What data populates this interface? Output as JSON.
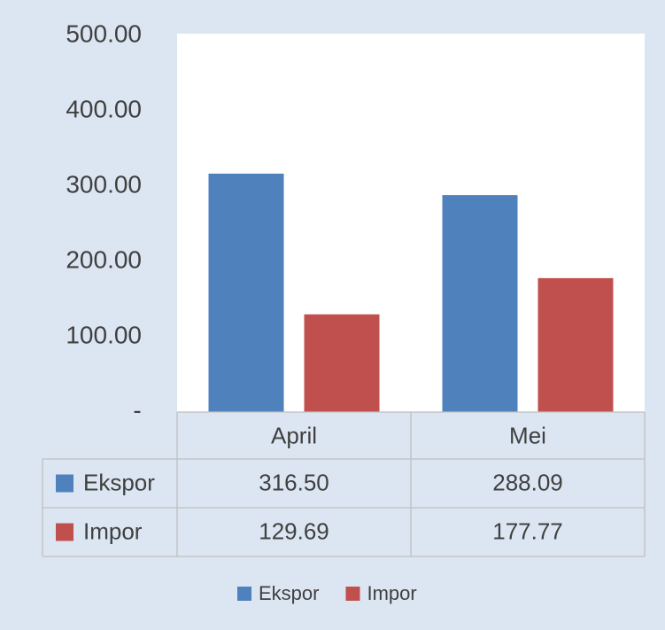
{
  "chart_data": {
    "type": "bar",
    "categories": [
      "April",
      "Mei"
    ],
    "series": [
      {
        "name": "Ekspor",
        "color": "#4f81bd",
        "values": [
          316.5,
          288.09
        ],
        "value_labels": [
          "316.50",
          "288.09"
        ]
      },
      {
        "name": "Impor",
        "color": "#c0504d",
        "values": [
          129.69,
          177.77
        ],
        "value_labels": [
          "129.69",
          "177.77"
        ]
      }
    ],
    "ylim": [
      0,
      500
    ],
    "yticks": [
      {
        "value": 0,
        "label": "-"
      },
      {
        "value": 100,
        "label": "100.00"
      },
      {
        "value": 200,
        "label": "200.00"
      },
      {
        "value": 300,
        "label": "300.00"
      },
      {
        "value": 400,
        "label": "400.00"
      },
      {
        "value": 500,
        "label": "500.00"
      }
    ],
    "grid": false,
    "data_table": true,
    "legend": "bottom"
  }
}
